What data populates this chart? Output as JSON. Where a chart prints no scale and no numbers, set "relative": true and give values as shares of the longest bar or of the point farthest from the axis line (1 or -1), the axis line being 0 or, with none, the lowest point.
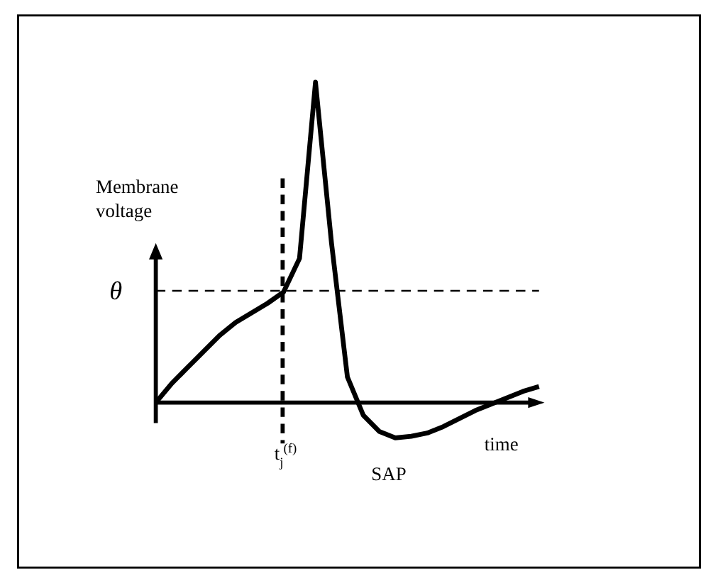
{
  "chart_data": {
    "type": "line",
    "relative": true,
    "ylabel": "Membrane voltage",
    "xlabel": "time",
    "categories": [
      null,
      null,
      null,
      null,
      null,
      null,
      null,
      null,
      null,
      null,
      null,
      null,
      null,
      null,
      null,
      null,
      null,
      null,
      null,
      null,
      null,
      null,
      null,
      null,
      null
    ],
    "line_style": "solid",
    "series": [
      {
        "color": "#000000",
        "values": [
          0,
          0.06,
          0.11,
          0.16,
          0.21,
          0.25,
          0.28,
          0.31,
          0.345,
          0.45,
          1,
          0.5,
          0.08,
          -0.04,
          -0.09,
          -0.11,
          -0.105,
          -0.095,
          -0.075,
          -0.05,
          -0.025,
          -0.005,
          0.015,
          0.035,
          0.05
        ]
      }
    ],
    "ref_lines": [
      {
        "axis": "y",
        "value": 0.349,
        "label": "θ",
        "line_style": "dashed",
        "color": "#000000"
      }
    ],
    "annotations": [
      "t$_{j}$$^{(f)}$",
      "SAP"
    ]
  }
}
